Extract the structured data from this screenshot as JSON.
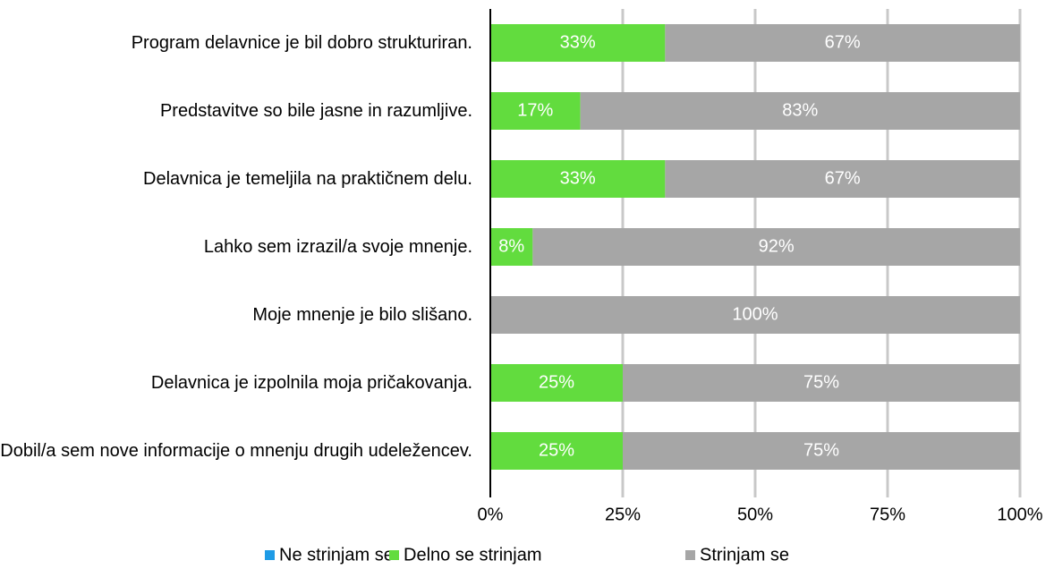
{
  "chart_data": {
    "type": "bar",
    "orientation": "horizontal",
    "stacked": true,
    "categories": [
      "Program delavnice je bil dobro strukturiran.",
      "Predstavitve so bile jasne in razumljive.",
      "Delavnica je temeljila na praktičnem delu.",
      "Lahko sem izrazil/a svoje mnenje.",
      "Moje mnenje je bilo slišano.",
      "Delavnica je izpolnila moja pričakovanja.",
      "Dobil/a sem nove informacije o mnenju drugih udeležencev."
    ],
    "series": [
      {
        "name": "Ne strinjam se",
        "color": "#1e9be6",
        "values": [
          0,
          0,
          0,
          0,
          0,
          0,
          0
        ]
      },
      {
        "name": "Delno se strinjam",
        "color": "#62dc3e",
        "values": [
          33,
          17,
          33,
          8,
          0,
          25,
          25
        ],
        "value_labels": [
          "33%",
          "17%",
          "33%",
          "8%",
          null,
          "25%",
          "25%"
        ]
      },
      {
        "name": "Strinjam se",
        "color": "#a6a6a6",
        "values": [
          67,
          83,
          67,
          92,
          100,
          75,
          75
        ],
        "value_labels": [
          "67%",
          "83%",
          "67%",
          "92%",
          "100%",
          "75%",
          "75%"
        ]
      }
    ],
    "xlim": [
      0,
      100
    ],
    "xticks": [
      {
        "value": 0,
        "label": "0%"
      },
      {
        "value": 25,
        "label": "25%"
      },
      {
        "value": 50,
        "label": "50%"
      },
      {
        "value": 75,
        "label": "75%"
      },
      {
        "value": 100,
        "label": "100%"
      }
    ],
    "grid": true,
    "legend": "bottom"
  }
}
